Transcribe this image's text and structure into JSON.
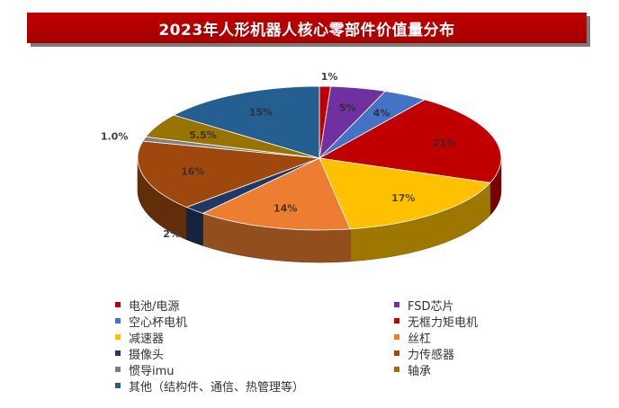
{
  "title": "2023年人形机器人核心零部件价值量分布",
  "chart_data": {
    "type": "pie",
    "style": "3d",
    "title": "2023年人形机器人核心零部件价值量分布",
    "legend_position": "bottom",
    "slices": [
      {
        "name": "电池/电源",
        "value": 1,
        "label": "1%",
        "color": "#c00000"
      },
      {
        "name": "FSD芯片",
        "value": 5,
        "label": "5%",
        "color": "#7030a0"
      },
      {
        "name": "空心杯电机",
        "value": 4,
        "label": "4%",
        "color": "#4472c4"
      },
      {
        "name": "无框力矩电机",
        "value": 21,
        "label": "21%",
        "color": "#c00000"
      },
      {
        "name": "减速器",
        "value": 17,
        "label": "17%",
        "color": "#ffc000"
      },
      {
        "name": "丝杠",
        "value": 14,
        "label": "14%",
        "color": "#ed7d31"
      },
      {
        "name": "摄像头",
        "value": 2,
        "label": "2%",
        "color": "#203864"
      },
      {
        "name": "力传感器",
        "value": 16,
        "label": "16%",
        "color": "#9e480e"
      },
      {
        "name": "惯导imu",
        "value": 1.0,
        "label": "1.0%",
        "color": "#7f7f7f"
      },
      {
        "name": "轴承",
        "value": 5.5,
        "label": "5.5%",
        "color": "#997300"
      },
      {
        "name": "其他（结构件、通信、热管理等）",
        "value": 15,
        "label": "15%",
        "color": "#255e91"
      }
    ]
  }
}
